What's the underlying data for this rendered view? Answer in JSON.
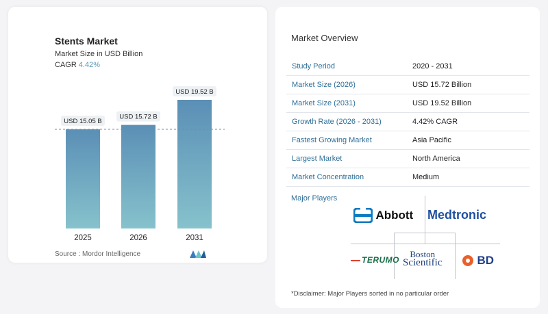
{
  "chart_title": "Stents Market",
  "chart_subtitle": "Market Size in USD Billion",
  "cagr_label": "CAGR",
  "cagr_value": "4.42%",
  "source": "Source :  Mordor Intelligence",
  "chart_data": {
    "type": "bar",
    "categories": [
      "2025",
      "2026",
      "2031"
    ],
    "values": [
      15.05,
      15.72,
      19.52
    ],
    "value_labels": [
      "USD 15.05 B",
      "USD 15.72 B",
      "USD 19.52 B"
    ],
    "title": "Stents Market",
    "ylim": [
      0,
      19.52
    ],
    "colors": {
      "bar_top": "#5b8fb6",
      "bar_bottom": "#86c2cc",
      "reference_line": "#6f8fa6"
    }
  },
  "overview": {
    "title": "Market Overview",
    "rows": [
      {
        "key": "Study Period",
        "value": "2020 - 2031"
      },
      {
        "key": "Market Size (2026)",
        "value": "USD 15.72 Billion"
      },
      {
        "key": "Market Size (2031)",
        "value": "USD 19.52 Billion"
      },
      {
        "key": "Growth Rate (2026 - 2031)",
        "value": "4.42% CAGR"
      },
      {
        "key": "Fastest Growing Market",
        "value": "Asia Pacific"
      },
      {
        "key": "Largest Market",
        "value": "North America"
      },
      {
        "key": "Market Concentration",
        "value": "Medium"
      }
    ]
  },
  "major_players_label": "Major Players",
  "players": {
    "abbott": "Abbott",
    "medtronic": "Medtronic",
    "terumo": "TERUMO",
    "boston_line1": "Boston",
    "boston_line2": "Scientific",
    "bd": "BD"
  },
  "disclaimer": "*Disclaimer: Major Players sorted in no particular order"
}
